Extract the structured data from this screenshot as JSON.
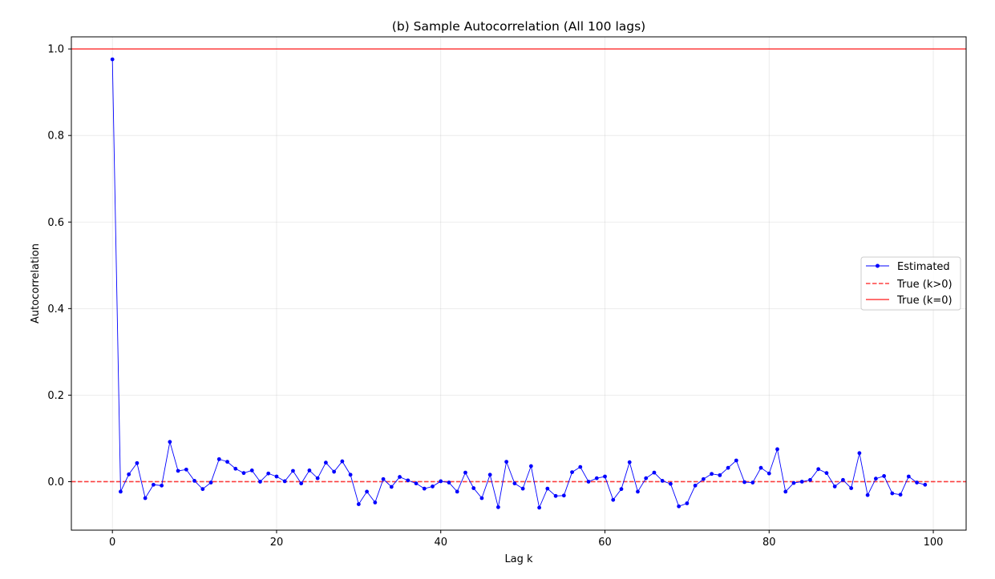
{
  "chart_data": {
    "type": "line",
    "title": "(b) Sample Autocorrelation (All 100 lags)",
    "xlabel": "Lag k",
    "ylabel": "Autocorrelation",
    "xlim": [
      -5,
      104
    ],
    "ylim": [
      -0.112,
      1.028
    ],
    "xticks": [
      0,
      20,
      40,
      60,
      80,
      100
    ],
    "xtick_labels": [
      "0",
      "20",
      "40",
      "60",
      "80",
      "100"
    ],
    "yticks": [
      0.0,
      0.2,
      0.4,
      0.6,
      0.8,
      1.0
    ],
    "ytick_labels": [
      "0.0",
      "0.2",
      "0.4",
      "0.6",
      "0.8",
      "1.0"
    ],
    "grid": true,
    "legend_position": "center-right",
    "series": [
      {
        "name": "Estimated",
        "color": "#0000ff",
        "style": "solid-with-dots",
        "x": [
          0,
          1,
          2,
          3,
          4,
          5,
          6,
          7,
          8,
          9,
          10,
          11,
          12,
          13,
          14,
          15,
          16,
          17,
          18,
          19,
          20,
          21,
          22,
          23,
          24,
          25,
          26,
          27,
          28,
          29,
          30,
          31,
          32,
          33,
          34,
          35,
          36,
          37,
          38,
          39,
          40,
          41,
          42,
          43,
          44,
          45,
          46,
          47,
          48,
          49,
          50,
          51,
          52,
          53,
          54,
          55,
          56,
          57,
          58,
          59,
          60,
          61,
          62,
          63,
          64,
          65,
          66,
          67,
          68,
          69,
          70,
          71,
          72,
          73,
          74,
          75,
          76,
          77,
          78,
          79,
          80,
          81,
          82,
          83,
          84,
          85,
          86,
          87,
          88,
          89,
          90,
          91,
          92,
          93,
          94,
          95,
          96,
          97,
          98,
          99
        ],
        "values": [
          0.976,
          -0.023,
          0.017,
          0.043,
          -0.038,
          -0.007,
          -0.009,
          0.092,
          0.025,
          0.028,
          0.002,
          -0.017,
          -0.002,
          0.052,
          0.046,
          0.03,
          0.02,
          0.026,
          0.0,
          0.019,
          0.012,
          0.001,
          0.025,
          -0.004,
          0.026,
          0.008,
          0.044,
          0.023,
          0.047,
          0.016,
          -0.052,
          -0.023,
          -0.048,
          0.006,
          -0.012,
          0.011,
          0.003,
          -0.004,
          -0.016,
          -0.011,
          0.001,
          -0.002,
          -0.023,
          0.021,
          -0.015,
          -0.038,
          0.016,
          -0.059,
          0.046,
          -0.004,
          -0.016,
          0.036,
          -0.06,
          -0.016,
          -0.033,
          -0.032,
          0.022,
          0.034,
          0.0,
          0.008,
          0.012,
          -0.042,
          -0.017,
          0.045,
          -0.023,
          0.008,
          0.021,
          0.002,
          -0.005,
          -0.057,
          -0.05,
          -0.009,
          0.006,
          0.018,
          0.015,
          0.032,
          0.049,
          -0.001,
          -0.002,
          0.032,
          0.019,
          0.075,
          -0.023,
          -0.003,
          0.0,
          0.004,
          0.029,
          0.02,
          -0.011,
          0.004,
          -0.015,
          0.066,
          -0.031,
          0.007,
          0.013,
          -0.027,
          -0.03,
          0.012,
          -0.002,
          -0.007
        ]
      },
      {
        "name": "True (k>0)",
        "color": "#ff0000",
        "style": "dashed",
        "y": 0.0
      },
      {
        "name": "True (k=0)",
        "color": "#ff0000",
        "style": "solid",
        "y": 1.0
      }
    ]
  }
}
